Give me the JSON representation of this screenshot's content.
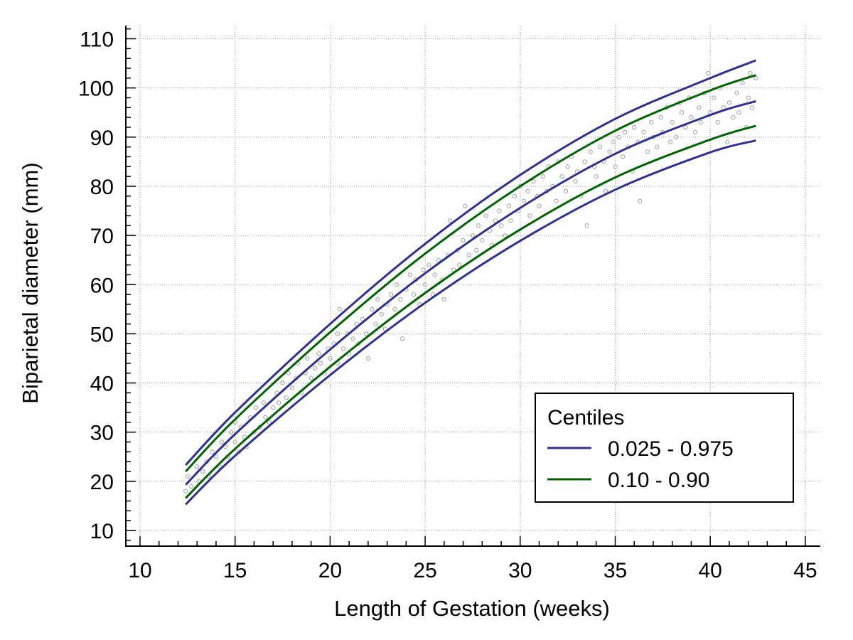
{
  "chart_data": {
    "type": "scatter",
    "xlabel": "Length of Gestation (weeks)",
    "ylabel": "Biparietal diameter (mm)",
    "xlim": [
      9.2,
      45.8
    ],
    "ylim": [
      7,
      112.5
    ],
    "xticks": [
      10,
      15,
      20,
      25,
      30,
      35,
      40,
      45
    ],
    "yticks": [
      10,
      20,
      30,
      40,
      50,
      60,
      70,
      80,
      90,
      100,
      110
    ],
    "grid": true,
    "legend": {
      "title": "Centiles",
      "position": "bottom-right",
      "entries": [
        {
          "label": "0.025 - 0.975",
          "color": "#2e3192"
        },
        {
          "label": "0.10 - 0.90",
          "color": "#006400"
        }
      ]
    },
    "colors": {
      "median": "#2e3192",
      "outer_centiles": "#2e3192",
      "inner_centiles": "#006400",
      "points": "#a6a6a6",
      "grid": "#999999"
    },
    "curves": [
      {
        "centile": "0.50",
        "x": [
          12.4,
          15,
          20,
          25,
          30,
          35,
          40,
          42.4
        ],
        "y": [
          19.3,
          29.6,
          46.8,
          62.3,
          75.6,
          86.6,
          94.5,
          97.3
        ]
      },
      {
        "centile": "0.025",
        "x": [
          12.4,
          15,
          20,
          25,
          30,
          35,
          40,
          42.4
        ],
        "y": [
          15.3,
          25.2,
          41.6,
          56.3,
          68.9,
          79.3,
          86.9,
          89.3
        ]
      },
      {
        "centile": "0.975",
        "x": [
          12.4,
          15,
          20,
          25,
          30,
          35,
          40,
          42.4
        ],
        "y": [
          23.3,
          34.0,
          52.0,
          68.3,
          82.3,
          93.7,
          102.0,
          105.6
        ]
      },
      {
        "centile": "0.10",
        "x": [
          12.4,
          15,
          20,
          25,
          30,
          35,
          40,
          42.4
        ],
        "y": [
          16.6,
          26.6,
          43.3,
          58.3,
          71.2,
          81.8,
          89.5,
          92.3
        ]
      },
      {
        "centile": "0.90",
        "x": [
          12.4,
          15,
          20,
          25,
          30,
          35,
          40,
          42.4
        ],
        "y": [
          22.0,
          32.6,
          50.3,
          66.3,
          80.0,
          91.3,
          99.5,
          102.6
        ]
      }
    ],
    "points": [
      [
        12.4,
        18
      ],
      [
        12.5,
        21
      ],
      [
        12.7,
        19
      ],
      [
        13.0,
        23
      ],
      [
        13.1,
        20
      ],
      [
        13.3,
        22
      ],
      [
        13.5,
        24
      ],
      [
        13.6,
        21
      ],
      [
        13.8,
        26
      ],
      [
        14.0,
        25
      ],
      [
        14.2,
        23
      ],
      [
        14.3,
        28
      ],
      [
        14.5,
        27
      ],
      [
        14.6,
        25
      ],
      [
        14.8,
        30
      ],
      [
        15.0,
        28
      ],
      [
        15.0,
        32
      ],
      [
        15.2,
        26
      ],
      [
        15.3,
        31
      ],
      [
        15.5,
        29
      ],
      [
        15.6,
        27
      ],
      [
        15.8,
        33
      ],
      [
        16.0,
        30
      ],
      [
        16.1,
        35
      ],
      [
        16.3,
        31
      ],
      [
        16.5,
        36
      ],
      [
        16.6,
        33
      ],
      [
        16.8,
        32
      ],
      [
        17.0,
        35
      ],
      [
        17.2,
        38
      ],
      [
        17.3,
        36
      ],
      [
        17.5,
        40
      ],
      [
        17.7,
        37
      ],
      [
        17.8,
        42
      ],
      [
        18.0,
        39
      ],
      [
        18.2,
        41
      ],
      [
        18.3,
        44
      ],
      [
        18.5,
        38
      ],
      [
        18.7,
        42
      ],
      [
        18.8,
        45
      ],
      [
        19.0,
        41
      ],
      [
        19.2,
        43
      ],
      [
        19.4,
        46
      ],
      [
        19.5,
        44
      ],
      [
        19.7,
        42
      ],
      [
        19.9,
        47
      ],
      [
        20.0,
        45
      ],
      [
        20.2,
        48
      ],
      [
        20.4,
        44
      ],
      [
        20.4,
        50
      ],
      [
        20.5,
        55
      ],
      [
        20.7,
        47
      ],
      [
        20.9,
        50
      ],
      [
        21.0,
        46
      ],
      [
        21.2,
        49
      ],
      [
        21.4,
        52
      ],
      [
        21.5,
        48
      ],
      [
        21.7,
        53
      ],
      [
        21.9,
        50
      ],
      [
        22.0,
        45
      ],
      [
        22.2,
        55
      ],
      [
        22.4,
        52
      ],
      [
        22.5,
        57
      ],
      [
        22.7,
        54
      ],
      [
        22.9,
        51
      ],
      [
        23.0,
        56
      ],
      [
        23.2,
        58
      ],
      [
        23.4,
        55
      ],
      [
        23.5,
        60
      ],
      [
        23.7,
        57
      ],
      [
        23.8,
        49
      ],
      [
        24.0,
        59
      ],
      [
        24.2,
        62
      ],
      [
        24.4,
        58
      ],
      [
        24.5,
        61
      ],
      [
        24.7,
        56
      ],
      [
        24.9,
        63
      ],
      [
        25.0,
        60
      ],
      [
        25.2,
        64
      ],
      [
        25.4,
        58
      ],
      [
        25.5,
        62
      ],
      [
        25.7,
        65
      ],
      [
        25.9,
        61
      ],
      [
        26.0,
        57
      ],
      [
        26.2,
        66
      ],
      [
        26.3,
        73
      ],
      [
        26.5,
        63
      ],
      [
        26.7,
        67
      ],
      [
        26.8,
        64
      ],
      [
        27.0,
        69
      ],
      [
        27.1,
        76
      ],
      [
        27.3,
        66
      ],
      [
        27.5,
        70
      ],
      [
        27.7,
        67
      ],
      [
        27.8,
        72
      ],
      [
        28.0,
        69
      ],
      [
        28.2,
        74
      ],
      [
        28.4,
        71
      ],
      [
        28.5,
        68
      ],
      [
        28.7,
        73
      ],
      [
        28.9,
        75
      ],
      [
        29.0,
        72
      ],
      [
        29.2,
        70
      ],
      [
        29.4,
        76
      ],
      [
        29.5,
        73
      ],
      [
        29.7,
        78
      ],
      [
        29.9,
        75
      ],
      [
        30.0,
        80
      ],
      [
        30.2,
        77
      ],
      [
        30.4,
        79
      ],
      [
        30.5,
        74
      ],
      [
        30.7,
        81
      ],
      [
        30.9,
        78
      ],
      [
        31.0,
        76
      ],
      [
        31.2,
        82
      ],
      [
        31.4,
        79
      ],
      [
        31.5,
        84
      ],
      [
        31.7,
        80
      ],
      [
        31.9,
        77
      ],
      [
        32.0,
        85
      ],
      [
        32.2,
        82
      ],
      [
        32.4,
        79
      ],
      [
        32.5,
        84
      ],
      [
        32.7,
        86
      ],
      [
        32.9,
        81
      ],
      [
        33.0,
        83
      ],
      [
        33.2,
        78
      ],
      [
        33.4,
        85
      ],
      [
        33.5,
        72
      ],
      [
        33.7,
        87
      ],
      [
        33.9,
        84
      ],
      [
        34.0,
        82
      ],
      [
        34.2,
        88
      ],
      [
        34.4,
        85
      ],
      [
        34.5,
        79
      ],
      [
        34.7,
        87
      ],
      [
        34.9,
        89
      ],
      [
        35.0,
        84
      ],
      [
        35.2,
        90
      ],
      [
        35.4,
        86
      ],
      [
        35.5,
        91
      ],
      [
        35.7,
        88
      ],
      [
        35.9,
        83
      ],
      [
        36.0,
        92
      ],
      [
        36.2,
        89
      ],
      [
        36.3,
        77
      ],
      [
        36.5,
        91
      ],
      [
        36.7,
        87
      ],
      [
        36.9,
        93
      ],
      [
        37.0,
        90
      ],
      [
        37.2,
        88
      ],
      [
        37.4,
        94
      ],
      [
        37.5,
        91
      ],
      [
        37.7,
        96
      ],
      [
        37.9,
        89
      ],
      [
        38.0,
        93
      ],
      [
        38.2,
        90
      ],
      [
        38.4,
        97
      ],
      [
        38.5,
        95
      ],
      [
        38.7,
        92
      ],
      [
        38.9,
        98
      ],
      [
        39.0,
        94
      ],
      [
        39.2,
        91
      ],
      [
        39.4,
        96
      ],
      [
        39.5,
        93
      ],
      [
        39.7,
        99
      ],
      [
        39.9,
        103
      ],
      [
        40.0,
        95
      ],
      [
        40.2,
        98
      ],
      [
        40.4,
        93
      ],
      [
        40.5,
        100
      ],
      [
        40.7,
        96
      ],
      [
        40.9,
        89
      ],
      [
        41.0,
        97
      ],
      [
        41.2,
        94
      ],
      [
        41.4,
        99
      ],
      [
        41.5,
        95
      ],
      [
        41.7,
        101
      ],
      [
        41.9,
        92
      ],
      [
        42.0,
        98
      ],
      [
        42.1,
        103
      ],
      [
        42.2,
        96
      ],
      [
        42.4,
        102
      ]
    ]
  }
}
